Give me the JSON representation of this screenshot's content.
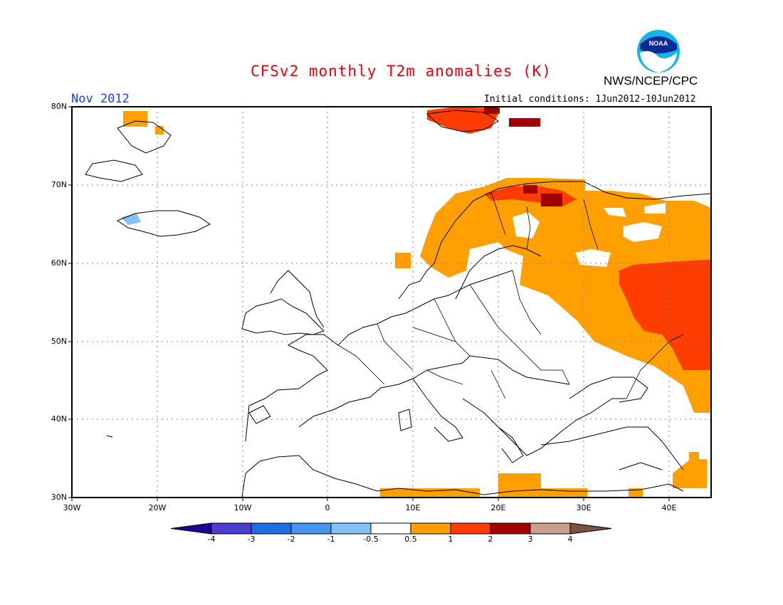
{
  "header": {
    "title": "CFSv2 monthly T2m anomalies (K)",
    "month": "Nov 2012",
    "initial_conditions": "Initial conditions: 1Jun2012-10Jun2012",
    "agency": "NWS/NCEP/CPC",
    "logo_text": "NOAA"
  },
  "axes": {
    "lat_labels": [
      "80N",
      "70N",
      "60N",
      "50N",
      "40N",
      "30N"
    ],
    "lon_labels": [
      "30W",
      "20W",
      "10W",
      "0",
      "10E",
      "20E",
      "30E",
      "40E"
    ],
    "lat_range": [
      30,
      80
    ],
    "lon_range": [
      -30,
      45
    ],
    "grid": "dotted"
  },
  "colorbar": {
    "labels": [
      "-4",
      "-3",
      "-2",
      "-1",
      "-0.5",
      "0.5",
      "1",
      "2",
      "3",
      "4"
    ],
    "colors": [
      "#1e0096",
      "#4b3cd2",
      "#1e6ee1",
      "#4696f0",
      "#82c3f5",
      "#ffffff",
      "#ffa000",
      "#ff3c00",
      "#a00000",
      "#c8a08c",
      "#7d5041"
    ]
  },
  "colors": {
    "anomaly_0.5_1": "#ffa000",
    "anomaly_1_2": "#ff3c00",
    "anomaly_2_3": "#a00000",
    "anomaly_neg_0.5_1": "#82c3f5",
    "title": "#e8000b",
    "month": "#1e3cff"
  }
}
